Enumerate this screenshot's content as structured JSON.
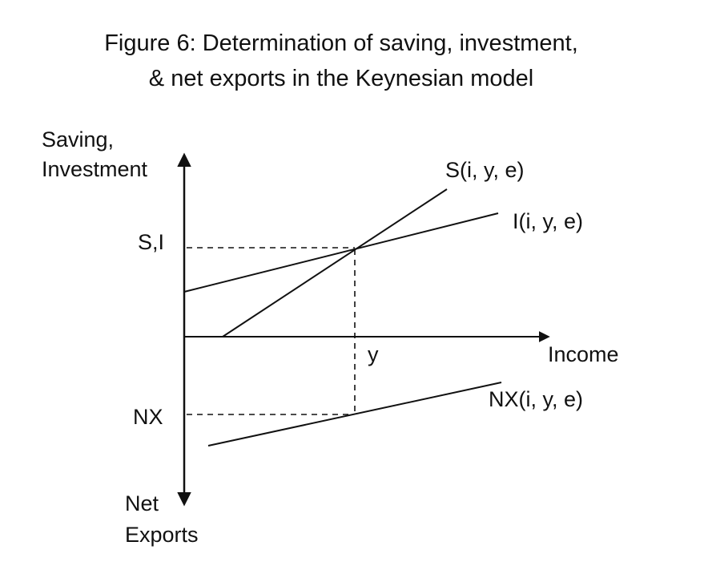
{
  "title": {
    "line1": "Figure 6: Determination of saving, investment,",
    "line2": "& net exports in the Keynesian model"
  },
  "labels": {
    "y_axis_top_line1": "Saving,",
    "y_axis_top_line2": "Investment",
    "y_axis_bottom_line1": "Net",
    "y_axis_bottom_line2": "Exports",
    "x_axis": "Income",
    "si_level": "S,I",
    "nx_level": "NX",
    "y_equilibrium": "y",
    "saving_curve": "S(i, y, e)",
    "investment_curve": "I(i, y, e)",
    "nx_curve": "NX(i, y, e)"
  },
  "colors": {
    "ink": "#111111",
    "background": "#ffffff"
  }
}
